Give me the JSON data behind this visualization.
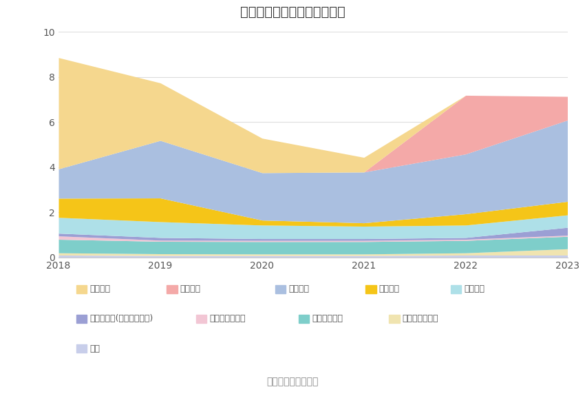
{
  "title": "历年主要负债堆积图（亿元）",
  "years": [
    2018,
    2019,
    2020,
    2021,
    2022,
    2023
  ],
  "series": [
    {
      "name": "其它",
      "color": "#C8CEEA",
      "values": [
        0.1,
        0.08,
        0.08,
        0.08,
        0.1,
        0.1
      ]
    },
    {
      "name": "递延所得税负债",
      "color": "#F0E4B0",
      "values": [
        0.1,
        0.08,
        0.07,
        0.07,
        0.1,
        0.28
      ]
    },
    {
      "name": "长期递延收益",
      "color": "#7ECECA",
      "values": [
        0.6,
        0.55,
        0.55,
        0.55,
        0.55,
        0.55
      ]
    },
    {
      "name": "长期应付款合计",
      "color": "#F2C6D4",
      "values": [
        0.15,
        0.05,
        0.05,
        0.05,
        0.05,
        0.05
      ]
    },
    {
      "name": "其他应付款(含利息和股利)",
      "color": "#9B9FD4",
      "values": [
        0.12,
        0.12,
        0.08,
        0.08,
        0.08,
        0.35
      ]
    },
    {
      "name": "应交税费",
      "color": "#AEE0E8",
      "values": [
        0.7,
        0.7,
        0.6,
        0.55,
        0.55,
        0.55
      ]
    },
    {
      "name": "合同负债",
      "color": "#F5C518",
      "values": [
        0.85,
        1.05,
        0.22,
        0.15,
        0.5,
        0.6
      ]
    },
    {
      "name": "应付账款",
      "color": "#AABFE0",
      "values": [
        1.3,
        2.55,
        2.1,
        2.25,
        2.65,
        3.6
      ]
    },
    {
      "name": "应付票据",
      "color": "#F4A9A8",
      "values": [
        0.0,
        0.0,
        0.0,
        0.0,
        2.6,
        1.05
      ]
    },
    {
      "name": "短期借款",
      "color": "#F5D78E",
      "values": [
        4.93,
        2.55,
        1.53,
        0.65,
        0.0,
        0.0
      ]
    }
  ],
  "ylim": [
    0,
    10
  ],
  "yticks": [
    0,
    2,
    4,
    6,
    8,
    10
  ],
  "source_text": "数据来源：恒生聚源",
  "background_color": "#ffffff",
  "grid_color": "#dddddd",
  "legend_order": [
    "短期借款",
    "应付票据",
    "应付账款",
    "合同负债",
    "应交税费",
    "其他应付款(含利息和股利)",
    "长期应付款合计",
    "长期递延收益",
    "递延所得税负债",
    "其它"
  ]
}
